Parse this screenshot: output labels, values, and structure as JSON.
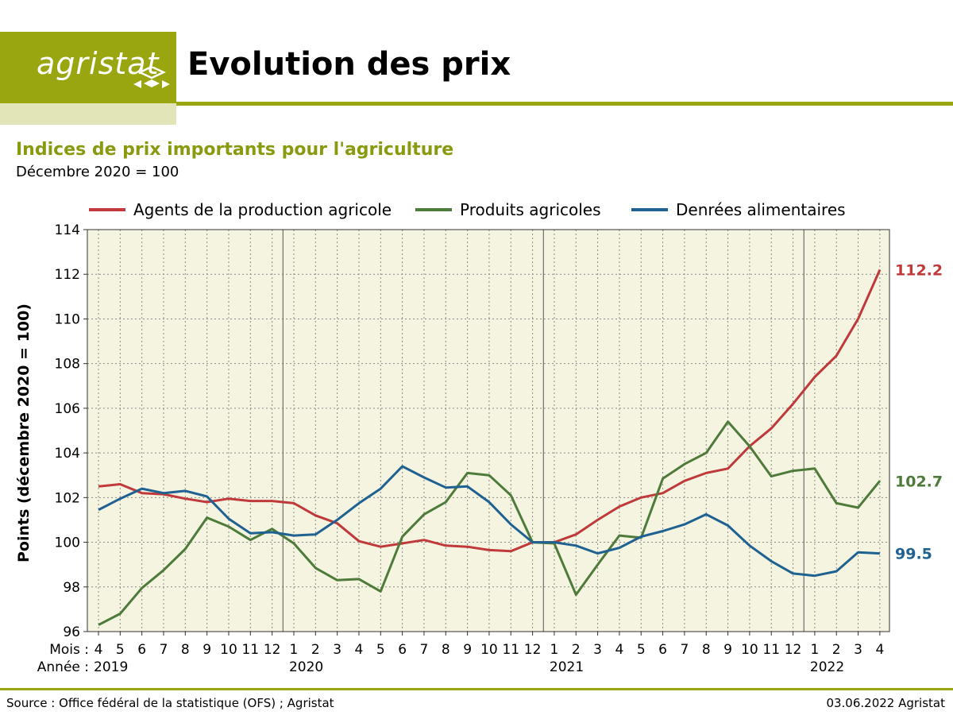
{
  "header": {
    "logo_text": "agristat",
    "title": "Evolution des prix"
  },
  "footer": {
    "source": "Source : Office fédéral de la statistique (OFS) ; Agristat",
    "date": "03.06.2022 Agristat"
  },
  "colors": {
    "brand": "#9aa60f",
    "brand_light": "#e2e5b8",
    "plot_bg": "#f4f4e0",
    "series_red": "#c0393b",
    "series_green": "#4e7b3a",
    "series_blue": "#1f6291"
  },
  "chart_data": {
    "type": "line",
    "title": "Indices de prix importants pour l'agriculture",
    "subtitle": "Décembre 2020 = 100",
    "ylabel": "Points (décembre 2020 = 100)",
    "ylim": [
      96,
      114
    ],
    "yticks": [
      96,
      98,
      100,
      102,
      104,
      106,
      108,
      110,
      112,
      114
    ],
    "grid": true,
    "legend_position": "top",
    "x_axis_row_labels": {
      "month": "Mois :",
      "year": "Année :"
    },
    "months": [
      "4",
      "5",
      "6",
      "7",
      "8",
      "9",
      "10",
      "11",
      "12",
      "1",
      "2",
      "3",
      "4",
      "5",
      "6",
      "7",
      "8",
      "9",
      "10",
      "11",
      "12",
      "1",
      "2",
      "3",
      "4",
      "5",
      "6",
      "7",
      "8",
      "9",
      "10",
      "11",
      "12",
      "1",
      "2",
      "3",
      "4"
    ],
    "years": [
      {
        "label": "2019",
        "start_index": 0
      },
      {
        "label": "2020",
        "start_index": 9
      },
      {
        "label": "2021",
        "start_index": 21
      },
      {
        "label": "2022",
        "start_index": 33
      }
    ],
    "series": [
      {
        "name": "Agents de la production agricole",
        "color": "#c0393b",
        "end_label": "112.2",
        "values": [
          102.5,
          102.6,
          102.2,
          102.15,
          101.95,
          101.8,
          101.95,
          101.85,
          101.85,
          101.75,
          101.2,
          100.85,
          100.05,
          99.8,
          99.95,
          100.1,
          99.85,
          99.8,
          99.65,
          99.6,
          100.0,
          100.0,
          100.35,
          101.0,
          101.6,
          102.0,
          102.2,
          102.75,
          103.1,
          103.3,
          104.3,
          105.1,
          106.2,
          107.4,
          108.35,
          110.0,
          112.2
        ]
      },
      {
        "name": "Produits agricoles",
        "color": "#4e7b3a",
        "end_label": "102.7",
        "values": [
          96.3,
          96.8,
          97.95,
          98.75,
          99.7,
          101.1,
          100.7,
          100.1,
          100.6,
          99.95,
          98.85,
          98.3,
          98.35,
          97.8,
          100.25,
          101.25,
          101.8,
          103.1,
          103.0,
          102.1,
          100.0,
          99.95,
          97.65,
          99.0,
          100.3,
          100.2,
          102.85,
          103.5,
          104.0,
          105.4,
          104.3,
          102.95,
          103.2,
          103.3,
          101.75,
          101.55,
          102.75
        ]
      },
      {
        "name": "Denrées alimentaires",
        "color": "#1f6291",
        "end_label": "99.5",
        "values": [
          101.45,
          101.95,
          102.4,
          102.2,
          102.3,
          102.05,
          101.05,
          100.4,
          100.45,
          100.3,
          100.35,
          101.0,
          101.75,
          102.4,
          103.4,
          102.9,
          102.45,
          102.5,
          101.8,
          100.8,
          100.0,
          100.0,
          99.85,
          99.5,
          99.75,
          100.25,
          100.5,
          100.8,
          101.25,
          100.75,
          99.85,
          99.15,
          98.6,
          98.5,
          98.7,
          99.55,
          99.5
        ]
      }
    ]
  }
}
